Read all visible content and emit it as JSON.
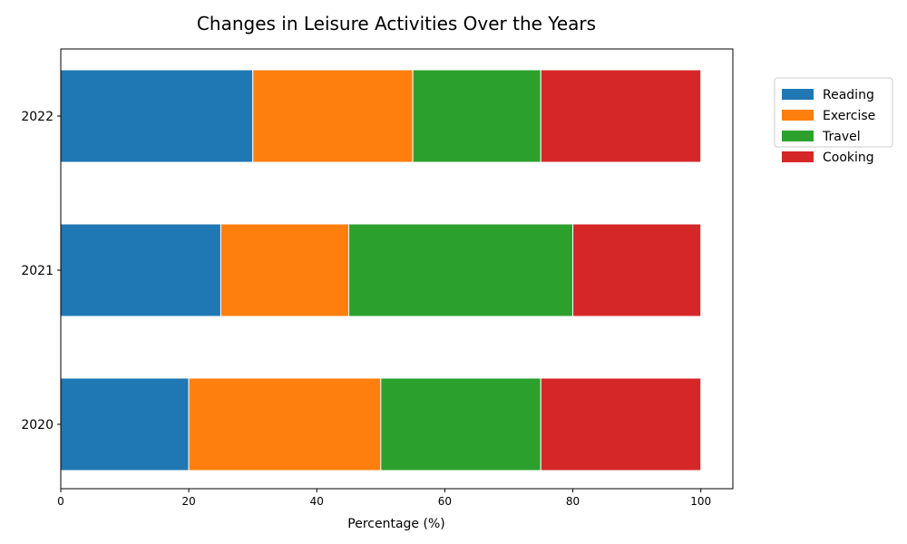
{
  "chart_data": {
    "type": "bar",
    "orientation": "horizontal",
    "stacked": true,
    "title": "Changes in Leisure Activities Over the Years",
    "xlabel": "Percentage (%)",
    "ylabel": "",
    "xlim": [
      0,
      105
    ],
    "xticks": [
      0,
      20,
      40,
      60,
      80,
      100
    ],
    "categories": [
      "2020",
      "2021",
      "2022"
    ],
    "series": [
      {
        "name": "Reading",
        "color": "#1f77b4",
        "values": [
          20,
          25,
          30
        ]
      },
      {
        "name": "Exercise",
        "color": "#ff7f0e",
        "values": [
          30,
          20,
          25
        ]
      },
      {
        "name": "Travel",
        "color": "#2ca02c",
        "values": [
          25,
          35,
          20
        ]
      },
      {
        "name": "Cooking",
        "color": "#d62728",
        "values": [
          25,
          20,
          25
        ]
      }
    ],
    "grid": false,
    "legend_position": "outside-top-right"
  }
}
